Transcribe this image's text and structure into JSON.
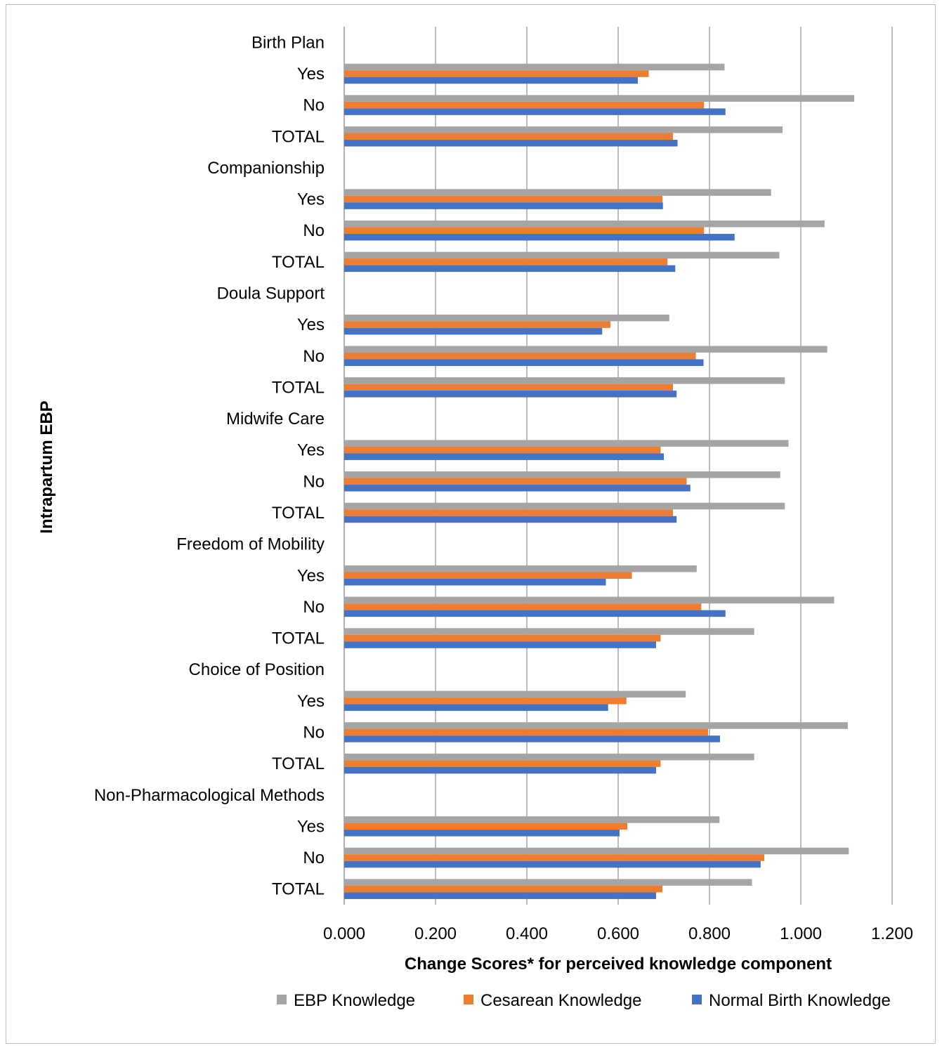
{
  "chart_data": {
    "type": "bar",
    "orientation": "horizontal",
    "xlabel": "Change Scores* for perceived knowledge component",
    "ylabel": "Intrapartum EBP",
    "xlim": [
      0,
      1.2
    ],
    "xticks": [
      "0.000",
      "0.200",
      "0.400",
      "0.600",
      "0.800",
      "1.000",
      "1.200"
    ],
    "grid": true,
    "legend_position": "bottom",
    "categories": [
      "Birth Plan",
      "Yes",
      "No",
      "TOTAL",
      "Companionship",
      "Yes",
      "No",
      "TOTAL",
      "Doula Support",
      "Yes",
      "No",
      "TOTAL",
      "Midwife Care",
      "Yes",
      "No",
      "TOTAL",
      "Freedom of Mobility",
      "Yes",
      "No",
      "TOTAL",
      "Choice of Position",
      "Yes",
      "No",
      "TOTAL",
      "Non-Pharmacological Methods",
      "Yes",
      "No",
      "TOTAL"
    ],
    "series": [
      {
        "name": "EBP Knowledge",
        "color": "#a5a5a5",
        "values": [
          null,
          0.833,
          1.117,
          0.96,
          null,
          0.935,
          1.052,
          0.953,
          null,
          0.712,
          1.058,
          0.965,
          null,
          0.973,
          0.955,
          0.965,
          null,
          0.772,
          1.073,
          0.898,
          null,
          0.748,
          1.103,
          0.898,
          null,
          0.822,
          1.105,
          0.893
        ]
      },
      {
        "name": "Cesarean Knowledge",
        "color": "#ed7d31",
        "values": [
          null,
          0.667,
          0.788,
          0.72,
          null,
          0.697,
          0.788,
          0.708,
          null,
          0.583,
          0.77,
          0.72,
          null,
          0.693,
          0.75,
          0.72,
          null,
          0.63,
          0.782,
          0.693,
          null,
          0.618,
          0.797,
          0.693,
          null,
          0.62,
          0.92,
          0.697
        ]
      },
      {
        "name": "Normal Birth Knowledge",
        "color": "#4472c4",
        "values": [
          null,
          0.643,
          0.835,
          0.73,
          null,
          0.698,
          0.855,
          0.725,
          null,
          0.565,
          0.787,
          0.728,
          null,
          0.7,
          0.758,
          0.728,
          null,
          0.573,
          0.835,
          0.683,
          null,
          0.578,
          0.823,
          0.683,
          null,
          0.603,
          0.912,
          0.683
        ]
      }
    ]
  }
}
